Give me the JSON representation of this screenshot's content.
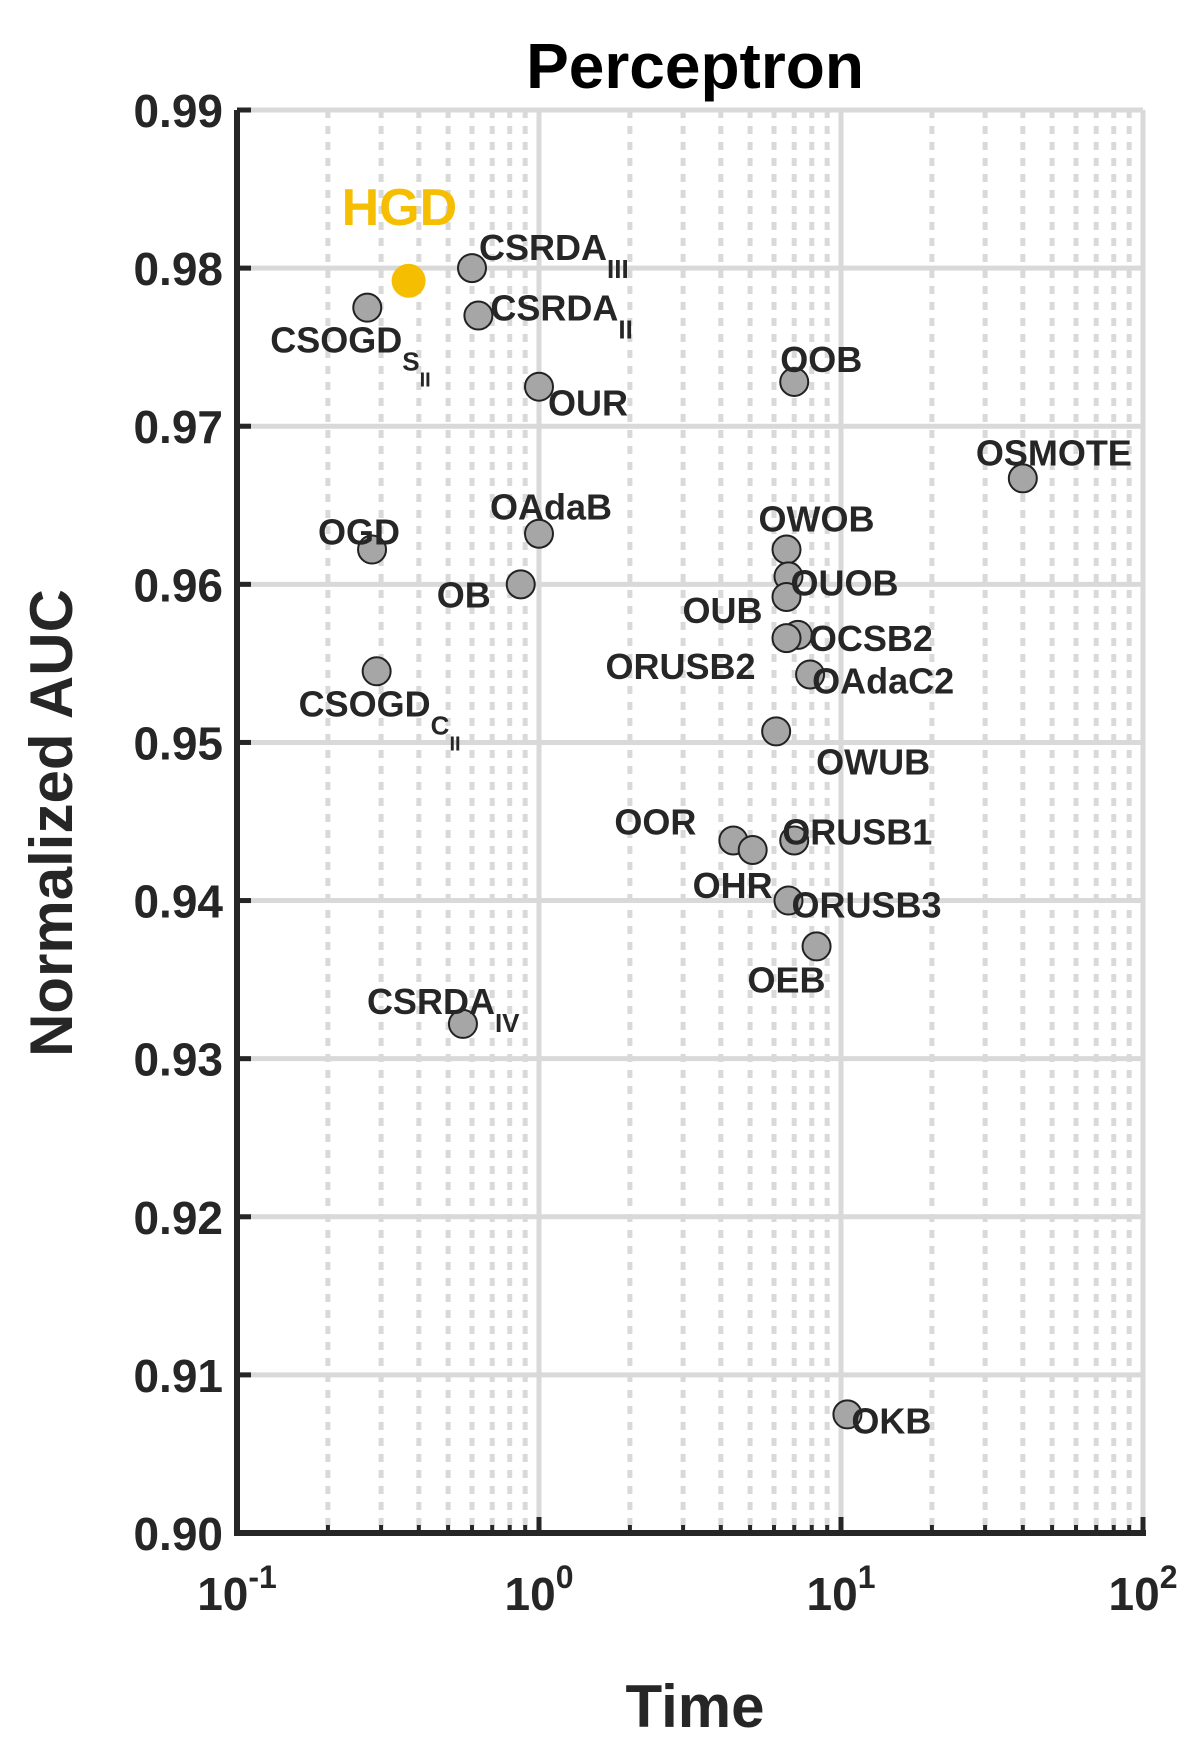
{
  "chart_data": {
    "type": "scatter",
    "title": "Perceptron",
    "xlabel": "Time",
    "ylabel": "Normalized AUC",
    "xscale": "log",
    "xlim": [
      0.1,
      100
    ],
    "ylim": [
      0.9,
      0.99
    ],
    "grid": true,
    "x_ticks": [
      {
        "base": "10",
        "exp": "-1"
      },
      {
        "base": "10",
        "exp": "0"
      },
      {
        "base": "10",
        "exp": "1"
      },
      {
        "base": "10",
        "exp": "2"
      }
    ],
    "y_ticks": [
      "0.90",
      "0.91",
      "0.92",
      "0.93",
      "0.94",
      "0.95",
      "0.96",
      "0.97",
      "0.98",
      "0.99"
    ],
    "colors": {
      "highlight": "#F5BE00",
      "point_fill": "#A6A6A6",
      "point_edge": "#222222",
      "axis": "#262626",
      "label_text": "#262626",
      "grid": "#D9D9D9"
    },
    "points": [
      {
        "label": "HGD",
        "x": 0.37,
        "y": 0.9792,
        "highlight": true
      },
      {
        "label": "CSRDA",
        "sub": "III",
        "x": 0.6,
        "y": 0.98
      },
      {
        "label": "CSRDA",
        "sub": "II",
        "x": 0.63,
        "y": 0.977
      },
      {
        "label": "CSOGD",
        "sub": "S",
        "subsub": "II",
        "x": 0.27,
        "y": 0.9775
      },
      {
        "label": "OUR",
        "x": 1.0,
        "y": 0.9725
      },
      {
        "label": "OOB",
        "x": 7.0,
        "y": 0.9728
      },
      {
        "label": "OSMOTE",
        "x": 40.0,
        "y": 0.9667
      },
      {
        "label": "OGD",
        "x": 0.28,
        "y": 0.9622
      },
      {
        "label": "OAdaB",
        "x": 1.0,
        "y": 0.9632
      },
      {
        "label": "OB",
        "x": 0.87,
        "y": 0.96
      },
      {
        "label": "OWOB",
        "x": 6.6,
        "y": 0.9622
      },
      {
        "label": "OUOB",
        "x": 6.7,
        "y": 0.9605
      },
      {
        "label": "OUB",
        "x": 6.6,
        "y": 0.9592
      },
      {
        "label": "OCSB2",
        "x": 7.2,
        "y": 0.9568
      },
      {
        "label": "ORUSB2",
        "x": 6.6,
        "y": 0.9566
      },
      {
        "label": "OAdaC2",
        "x": 7.9,
        "y": 0.9543
      },
      {
        "label": "CSOGD",
        "sub": "C",
        "subsub": "II",
        "x": 0.29,
        "y": 0.9545
      },
      {
        "label": "OWUB",
        "x": 6.1,
        "y": 0.9507
      },
      {
        "label": "OOR",
        "x": 4.4,
        "y": 0.9438
      },
      {
        "label": "OHR",
        "x": 5.1,
        "y": 0.9432
      },
      {
        "label": "ORUSB1",
        "x": 7.0,
        "y": 0.9438
      },
      {
        "label": "ORUSB3",
        "x": 6.7,
        "y": 0.94
      },
      {
        "label": "OEB",
        "x": 8.3,
        "y": 0.9371
      },
      {
        "label": "CSRDA",
        "sub": "IV",
        "x": 0.56,
        "y": 0.9322
      },
      {
        "label": "OKB",
        "x": 10.5,
        "y": 0.9075
      }
    ]
  }
}
